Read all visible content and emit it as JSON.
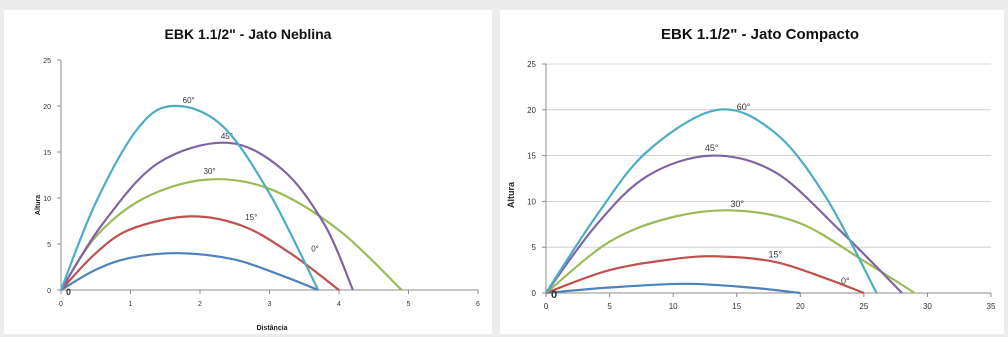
{
  "chart_data": [
    {
      "type": "line",
      "title": "EBK 1.1/2\" - Jato Neblina",
      "xlabel": "Distância",
      "ylabel": "Altura",
      "xlim": [
        0,
        6
      ],
      "ylim": [
        0,
        25
      ],
      "xticks": [
        "0",
        "1",
        "2",
        "3",
        "4",
        "5",
        "6"
      ],
      "yticks": [
        "0",
        "5",
        "10",
        "15",
        "20",
        "25"
      ],
      "grid": false,
      "series": [
        {
          "name": "0°",
          "label": "0°",
          "label_at": [
            3.6,
            4.2
          ],
          "color": "#4f81bd",
          "points": [
            [
              0,
              0
            ],
            [
              0.5,
              2.2
            ],
            [
              1.0,
              3.5
            ],
            [
              1.7,
              4.0
            ],
            [
              2.5,
              3.3
            ],
            [
              3.2,
              1.5
            ],
            [
              3.7,
              0
            ]
          ]
        },
        {
          "name": "15°",
          "label": "15°",
          "label_at": [
            2.65,
            7.6
          ],
          "color": "#c0504d",
          "points": [
            [
              0,
              0
            ],
            [
              0.5,
              4.0
            ],
            [
              1.0,
              6.6
            ],
            [
              1.85,
              8.0
            ],
            [
              2.6,
              7.0
            ],
            [
              3.3,
              4.0
            ],
            [
              4.0,
              0
            ]
          ]
        },
        {
          "name": "30°",
          "label": "30°",
          "label_at": [
            2.05,
            12.6
          ],
          "color": "#9bbb59",
          "points": [
            [
              0,
              0
            ],
            [
              0.5,
              5.8
            ],
            [
              1.2,
              10.0
            ],
            [
              2.1,
              12.0
            ],
            [
              3.0,
              11.0
            ],
            [
              4.0,
              6.5
            ],
            [
              4.9,
              0
            ]
          ]
        },
        {
          "name": "45°",
          "label": "45°",
          "label_at": [
            2.3,
            16.4
          ],
          "color": "#8064a2",
          "points": [
            [
              0,
              0
            ],
            [
              0.6,
              7.2
            ],
            [
              1.4,
              13.8
            ],
            [
              2.4,
              16.0
            ],
            [
              3.2,
              13.0
            ],
            [
              3.8,
              7.0
            ],
            [
              4.2,
              0
            ]
          ]
        },
        {
          "name": "60°",
          "label": "60°",
          "label_at": [
            1.75,
            20.3
          ],
          "color": "#4bacc6",
          "points": [
            [
              0,
              0
            ],
            [
              0.5,
              9.5
            ],
            [
              1.1,
              17.5
            ],
            [
              1.6,
              20.0
            ],
            [
              2.3,
              18.0
            ],
            [
              3.0,
              10.5
            ],
            [
              3.7,
              0
            ]
          ]
        }
      ]
    },
    {
      "type": "line",
      "title": "EBK 1.1/2\" - Jato Compacto",
      "xlabel": "",
      "ylabel": "Altura",
      "xlim": [
        0,
        35
      ],
      "ylim": [
        0,
        25
      ],
      "xticks": [
        "0",
        "5",
        "10",
        "15",
        "20",
        "25",
        "30",
        "35"
      ],
      "yticks": [
        "0",
        "5",
        "10",
        "15",
        "20",
        "25"
      ],
      "grid": true,
      "series": [
        {
          "name": "0°",
          "label": "0°",
          "label_at": [
            23.2,
            1.0
          ],
          "color": "#4f81bd",
          "points": [
            [
              0,
              0
            ],
            [
              5,
              0.6
            ],
            [
              11,
              1.0
            ],
            [
              16,
              0.6
            ],
            [
              20,
              0
            ]
          ]
        },
        {
          "name": "15°",
          "label": "15°",
          "label_at": [
            17.5,
            3.9
          ],
          "color": "#c0504d",
          "points": [
            [
              0,
              0
            ],
            [
              5,
              2.5
            ],
            [
              10,
              3.7
            ],
            [
              13.5,
              4.0
            ],
            [
              18,
              3.4
            ],
            [
              22,
              1.6
            ],
            [
              25,
              0
            ]
          ]
        },
        {
          "name": "30°",
          "label": "30°",
          "label_at": [
            14.5,
            9.4
          ],
          "color": "#9bbb59",
          "points": [
            [
              0,
              0
            ],
            [
              5,
              5.6
            ],
            [
              10,
              8.3
            ],
            [
              15,
              9.0
            ],
            [
              20,
              7.6
            ],
            [
              25,
              3.5
            ],
            [
              29,
              0
            ]
          ]
        },
        {
          "name": "45°",
          "label": "45°",
          "label_at": [
            12.5,
            15.5
          ],
          "color": "#8064a2",
          "points": [
            [
              0,
              0
            ],
            [
              4,
              7.5
            ],
            [
              8,
              12.8
            ],
            [
              13,
              15.0
            ],
            [
              18,
              13.2
            ],
            [
              23,
              7.0
            ],
            [
              28,
              0
            ]
          ]
        },
        {
          "name": "60°",
          "label": "60°",
          "label_at": [
            15,
            20
          ],
          "color": "#4bacc6",
          "points": [
            [
              0,
              0
            ],
            [
              4,
              8.5
            ],
            [
              8,
              15.5
            ],
            [
              13.5,
              20.0
            ],
            [
              18,
              17.5
            ],
            [
              22,
              10.5
            ],
            [
              26,
              0
            ]
          ]
        }
      ]
    }
  ]
}
